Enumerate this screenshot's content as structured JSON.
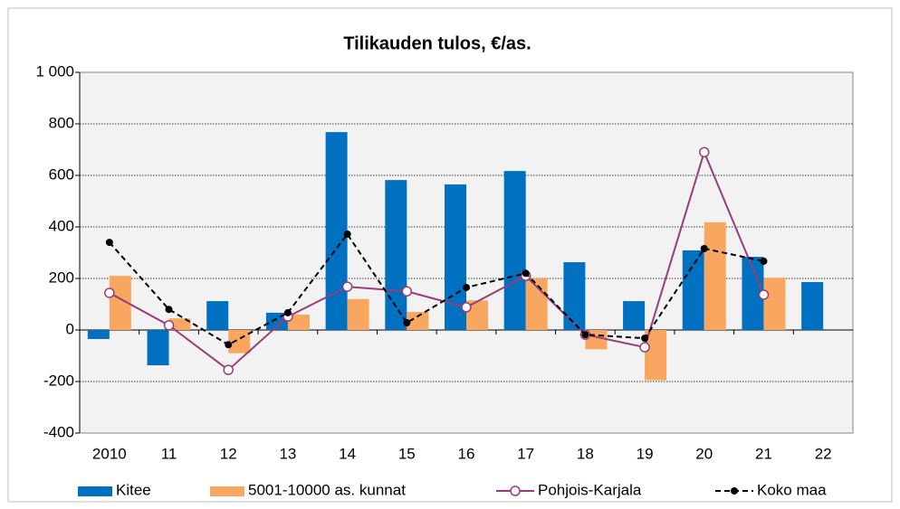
{
  "chart_data": {
    "type": "bar",
    "title": "Tilikauden tulos, €/as.",
    "categories": [
      "2010",
      "11",
      "12",
      "13",
      "14",
      "15",
      "16",
      "17",
      "18",
      "19",
      "20",
      "21",
      "22"
    ],
    "series": [
      {
        "name": "Kitee",
        "type": "bar",
        "color": "#0070c0",
        "values": [
          -35,
          -137,
          112,
          67,
          768,
          582,
          565,
          617,
          263,
          112,
          309,
          284,
          186
        ]
      },
      {
        "name": "5001-10000 as. kunnat",
        "type": "bar",
        "color": "#f9a660",
        "values": [
          210,
          45,
          -90,
          60,
          120,
          70,
          115,
          200,
          -75,
          -195,
          418,
          203,
          null
        ]
      },
      {
        "name": "Pohjois-Karjala",
        "type": "line",
        "color": "#993d7a",
        "marker": "open-circle",
        "values": [
          144,
          18,
          -155,
          52,
          168,
          150,
          88,
          210,
          -18,
          -67,
          690,
          137,
          null
        ]
      },
      {
        "name": "Koko maa",
        "type": "line",
        "color": "#000000",
        "dashed": true,
        "marker": "dot",
        "values": [
          340,
          80,
          -57,
          67,
          372,
          28,
          165,
          220,
          -18,
          -32,
          316,
          267,
          null
        ]
      }
    ],
    "ylim": [
      -400,
      1000
    ],
    "yticks": [
      -400,
      -200,
      0,
      200,
      400,
      600,
      800,
      {
        "value": 1000,
        "label": "1 000"
      }
    ],
    "grid": true
  }
}
